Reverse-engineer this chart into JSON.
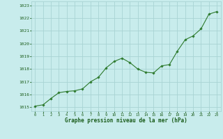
{
  "x": [
    0,
    1,
    2,
    3,
    4,
    5,
    6,
    7,
    8,
    9,
    10,
    11,
    12,
    13,
    14,
    15,
    16,
    17,
    18,
    19,
    20,
    21,
    22,
    23
  ],
  "y": [
    1015.1,
    1015.2,
    1015.7,
    1016.15,
    1016.25,
    1016.3,
    1016.45,
    1017.0,
    1017.35,
    1018.1,
    1018.6,
    1018.85,
    1018.5,
    1018.0,
    1017.75,
    1017.7,
    1018.25,
    1018.35,
    1019.4,
    1020.3,
    1020.6,
    1021.15,
    1022.3,
    1022.5
  ],
  "line_color": "#2d7a2d",
  "marker_color": "#2d7a2d",
  "bg_color": "#c8ecec",
  "grid_color": "#a8d4d4",
  "xlabel": "Graphe pression niveau de la mer (hPa)",
  "xlabel_color": "#1a5c1a",
  "tick_color": "#1a5c1a",
  "ylabel_ticks": [
    1015,
    1016,
    1017,
    1018,
    1019,
    1020,
    1021,
    1022,
    1023
  ],
  "xlim": [
    -0.5,
    23.5
  ],
  "ylim": [
    1014.7,
    1023.3
  ],
  "xticks": [
    0,
    1,
    2,
    3,
    4,
    5,
    6,
    7,
    8,
    9,
    10,
    11,
    12,
    13,
    14,
    15,
    16,
    17,
    18,
    19,
    20,
    21,
    22,
    23
  ],
  "xtick_labels": [
    "0",
    "1",
    "2",
    "3",
    "4",
    "5",
    "6",
    "7",
    "8",
    "9",
    "10",
    "11",
    "12",
    "13",
    "14",
    "15",
    "16",
    "17",
    "18",
    "19",
    "20",
    "21",
    "22",
    "23"
  ]
}
